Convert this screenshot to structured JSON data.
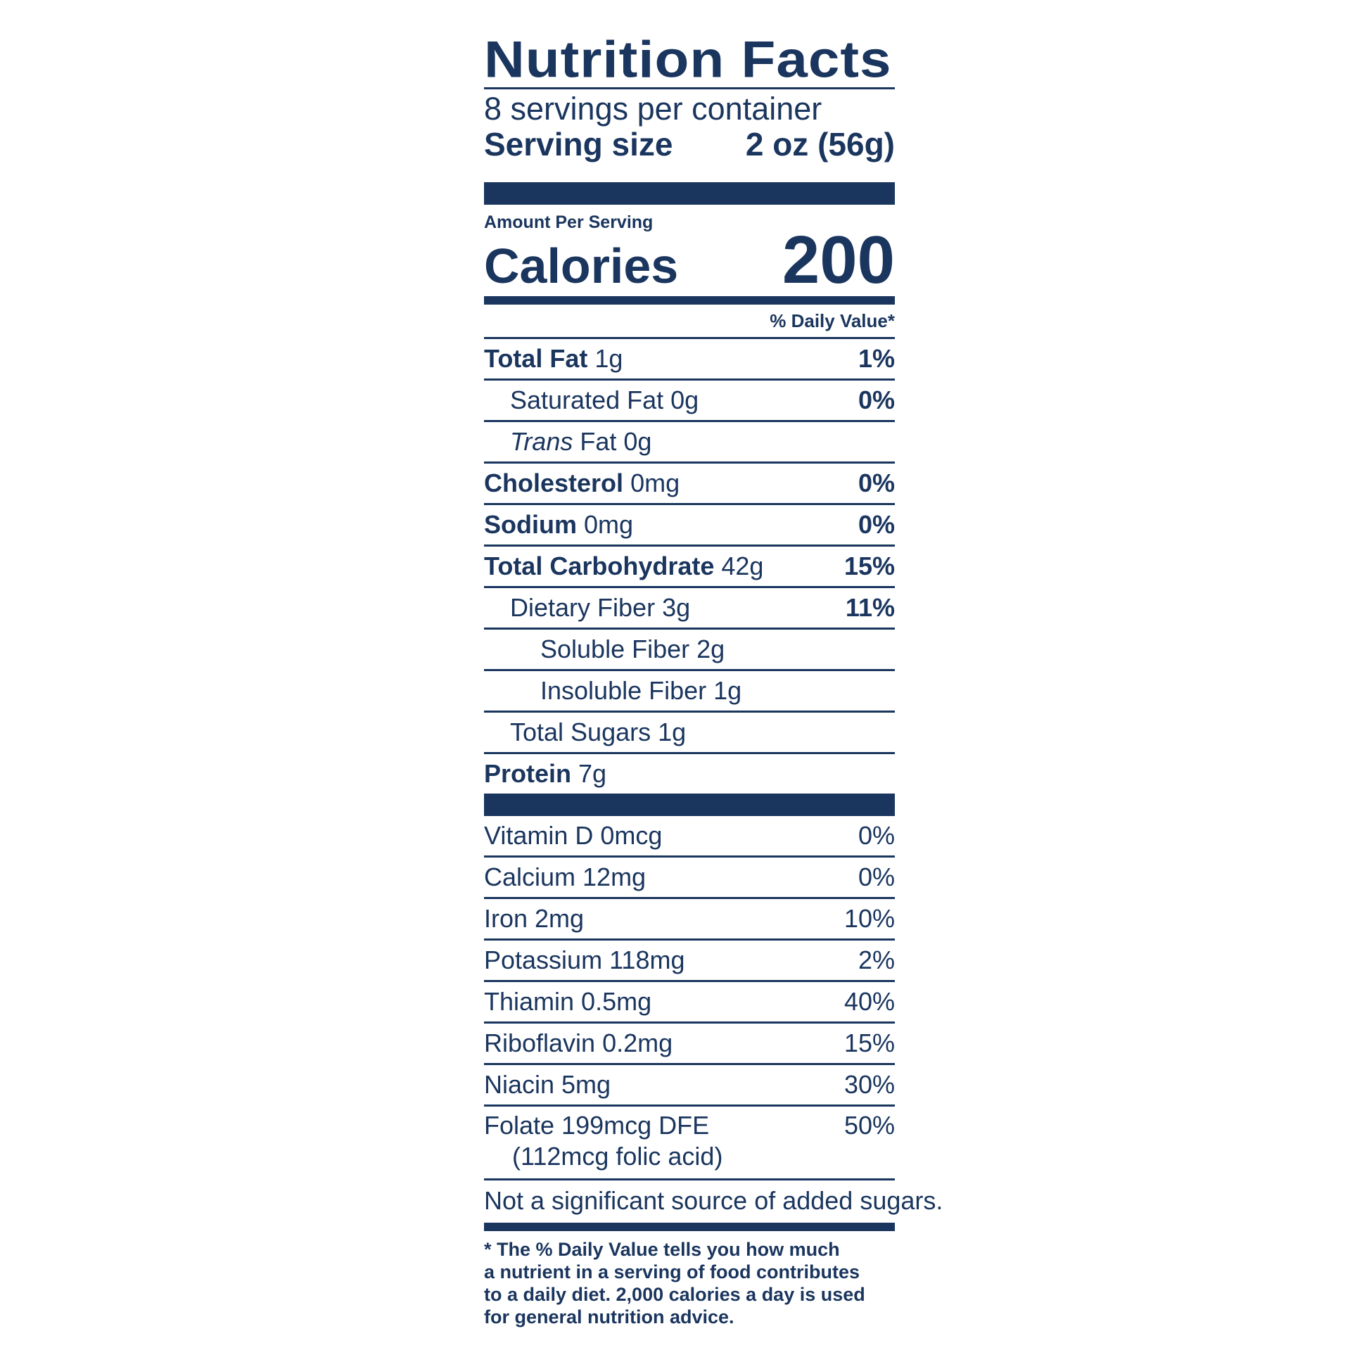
{
  "title": "Nutrition Facts",
  "servings_per_container": "8 servings per container",
  "serving_size": {
    "label": "Serving size",
    "value": "2 oz (56g)"
  },
  "amount_per_serving": "Amount Per Serving",
  "calories": {
    "label": "Calories",
    "value": "200"
  },
  "daily_value_header": "% Daily Value*",
  "nutrients": [
    {
      "name": "Total Fat",
      "amount": "1g",
      "dv": "1%"
    },
    {
      "name": "Saturated Fat",
      "amount": "0g",
      "dv": "0%"
    },
    {
      "name_italic": "Trans",
      "name": "Fat",
      "amount": "0g",
      "dv": ""
    },
    {
      "name": "Cholesterol",
      "amount": "0mg",
      "dv": "0%"
    },
    {
      "name": "Sodium",
      "amount": "0mg",
      "dv": "0%"
    },
    {
      "name": "Total Carbohydrate",
      "amount": "42g",
      "dv": "15%"
    },
    {
      "name": "Dietary Fiber",
      "amount": "3g",
      "dv": "11%"
    },
    {
      "name": "Soluble Fiber",
      "amount": "2g",
      "dv": ""
    },
    {
      "name": "Insoluble Fiber",
      "amount": "1g",
      "dv": ""
    },
    {
      "name": "Total Sugars",
      "amount": "1g",
      "dv": ""
    },
    {
      "name": "Protein",
      "amount": "7g",
      "dv": ""
    }
  ],
  "vitamins": [
    {
      "label": "Vitamin D 0mcg",
      "dv": "0%"
    },
    {
      "label": "Calcium 12mg",
      "dv": "0%"
    },
    {
      "label": "Iron 2mg",
      "dv": "10%"
    },
    {
      "label": "Potassium 118mg",
      "dv": "2%"
    },
    {
      "label": "Thiamin 0.5mg",
      "dv": "40%"
    },
    {
      "label": "Riboflavin 0.2mg",
      "dv": "15%"
    },
    {
      "label": "Niacin 5mg",
      "dv": "30%"
    }
  ],
  "folate": {
    "label": "Folate 199mcg DFE",
    "sub": "(112mcg folic acid)",
    "dv": "50%"
  },
  "added_sugars_note": "Not a significant source of added sugars.",
  "footnote": [
    "* The % Daily Value tells you how much",
    "a nutrient in a serving of food contributes",
    "to a daily diet. 2,000 calories a day is used",
    "for general nutrition advice."
  ],
  "colors": {
    "ink": "#1a355e",
    "background": "#ffffff"
  }
}
